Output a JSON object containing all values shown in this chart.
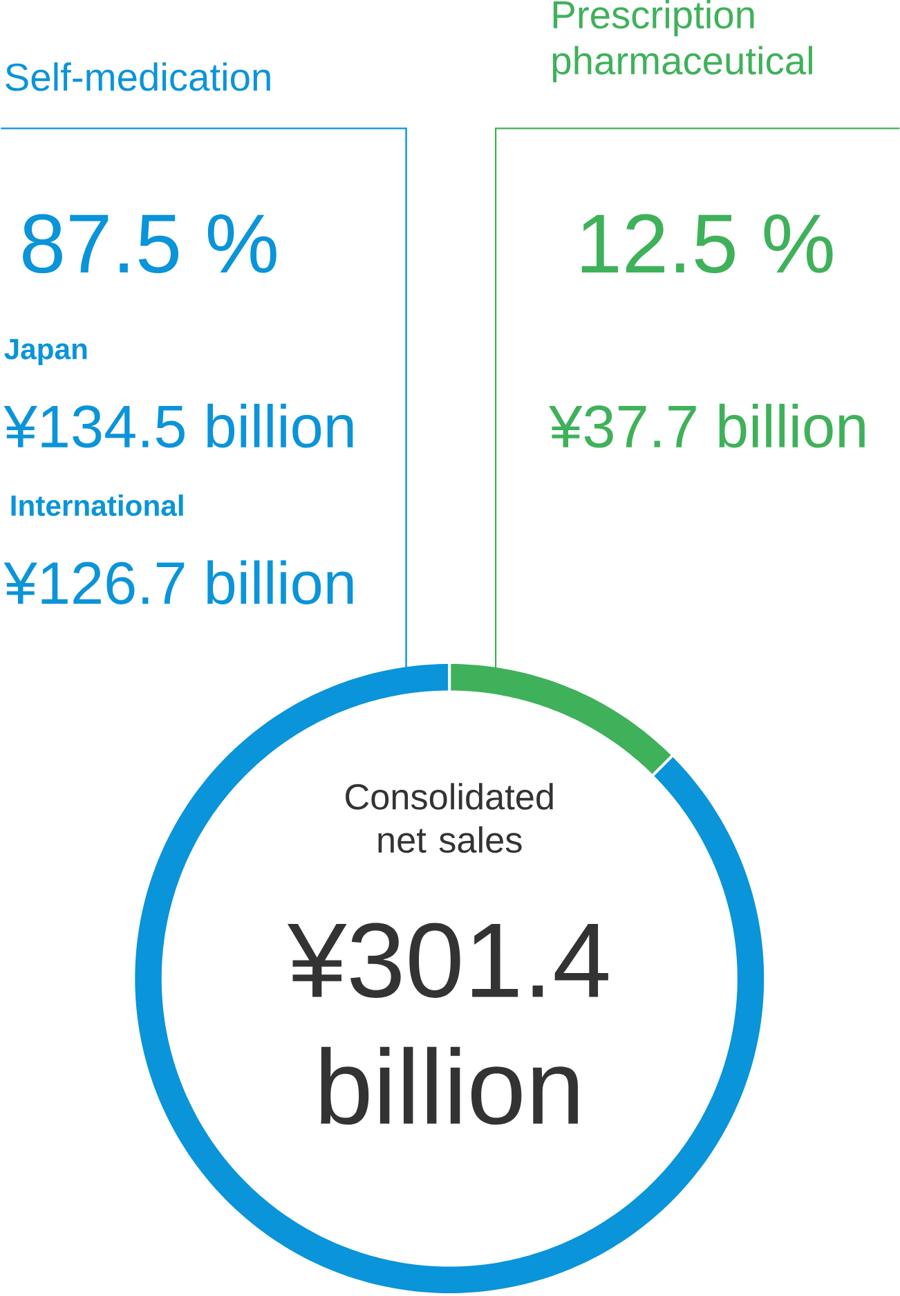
{
  "chart_data": {
    "type": "donut",
    "title": "Consolidated net sales",
    "subtitle": "¥301.4 billion",
    "categories": [
      "Self-medication",
      "Prescription pharmaceutical"
    ],
    "values": [
      87.5,
      12.5
    ],
    "colors": [
      "#0a94d9",
      "#3fb15a"
    ],
    "value_labels": [
      "87.5 %",
      "12.5 %"
    ],
    "annotations": [
      "Japan",
      "¥134.5 billion",
      "International",
      "¥126.7 billion",
      "¥37.7 billion"
    ]
  }
}
